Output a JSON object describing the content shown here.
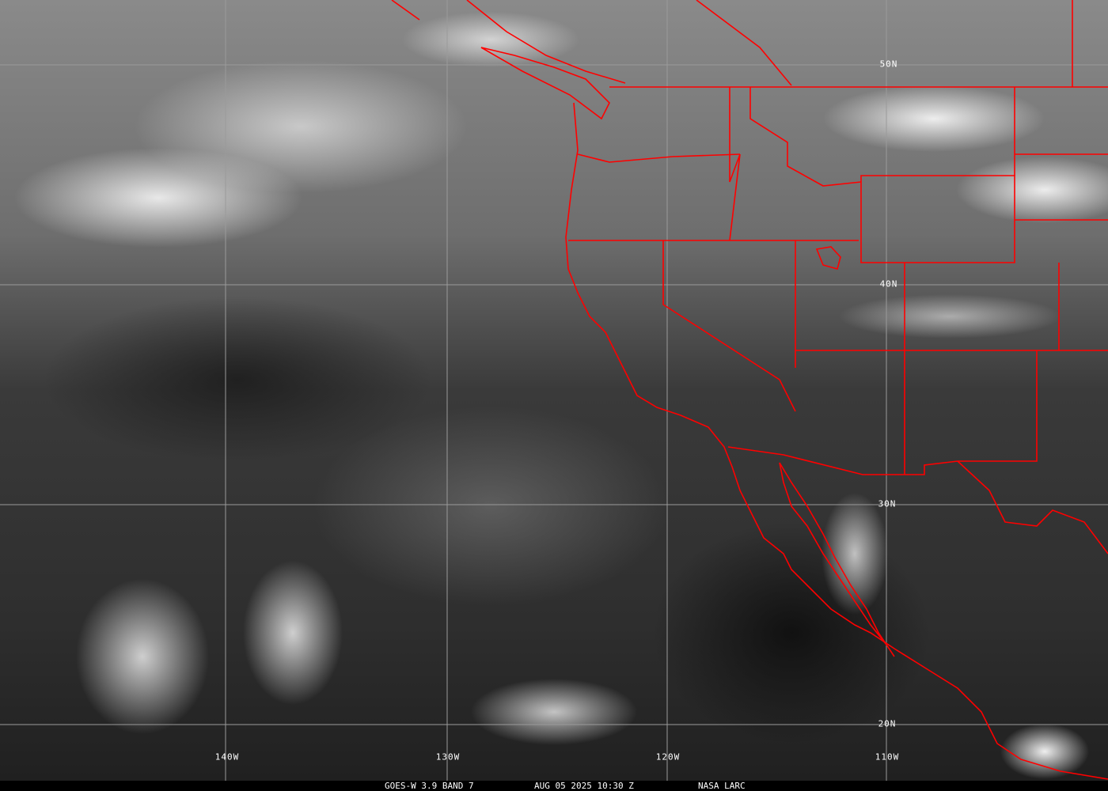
{
  "caption": {
    "satellite": "GOES-W 3.9 BAND 7",
    "datetime": "AUG 05 2025 10:30 Z",
    "credit": "NASA LARC"
  },
  "grid": {
    "latitudes": [
      "50N",
      "40N",
      "30N",
      "20N"
    ],
    "longitudes": [
      "140W",
      "130W",
      "120W",
      "110W"
    ]
  },
  "colors": {
    "borders": "#ff0000",
    "grid": "#9a9a9a",
    "caption_bg": "#000000",
    "caption_text": "#ffffff"
  }
}
